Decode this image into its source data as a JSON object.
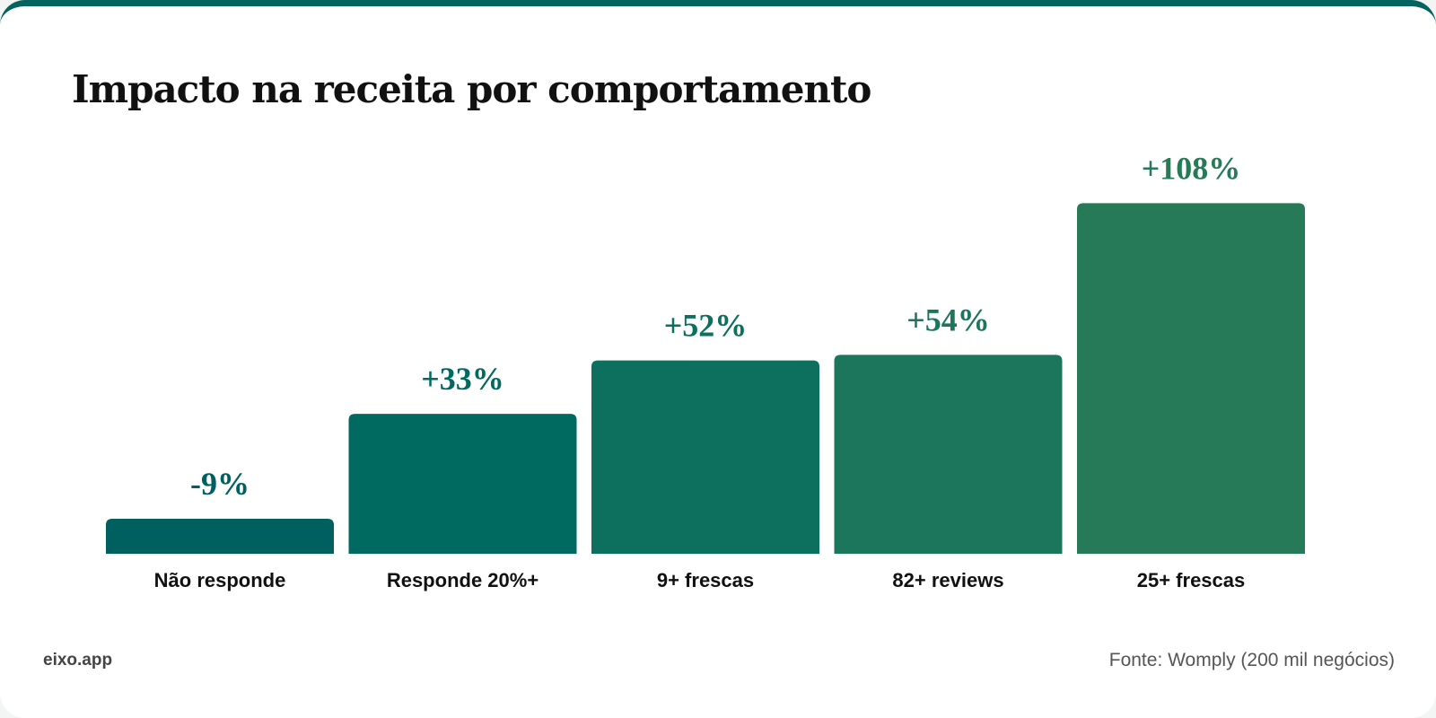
{
  "chart_data": {
    "type": "bar",
    "title": "Impacto na receita por comportamento",
    "categories": [
      "Não responde",
      "Responde 20%+",
      "9+ frescas",
      "82+ reviews",
      "25+ frescas"
    ],
    "values": [
      -9,
      33,
      52,
      54,
      108
    ],
    "data_labels": [
      "-9%",
      "+33%",
      "+52%",
      "+54%",
      "+108%"
    ],
    "colors": [
      "#005f5f",
      "#006a60",
      "#0d705e",
      "#1b765c",
      "#267a57"
    ],
    "grid": false,
    "legend": "none"
  },
  "footer": {
    "brand": "eixo.app",
    "source": "Fonte: Womply (200 mil negócios)"
  }
}
